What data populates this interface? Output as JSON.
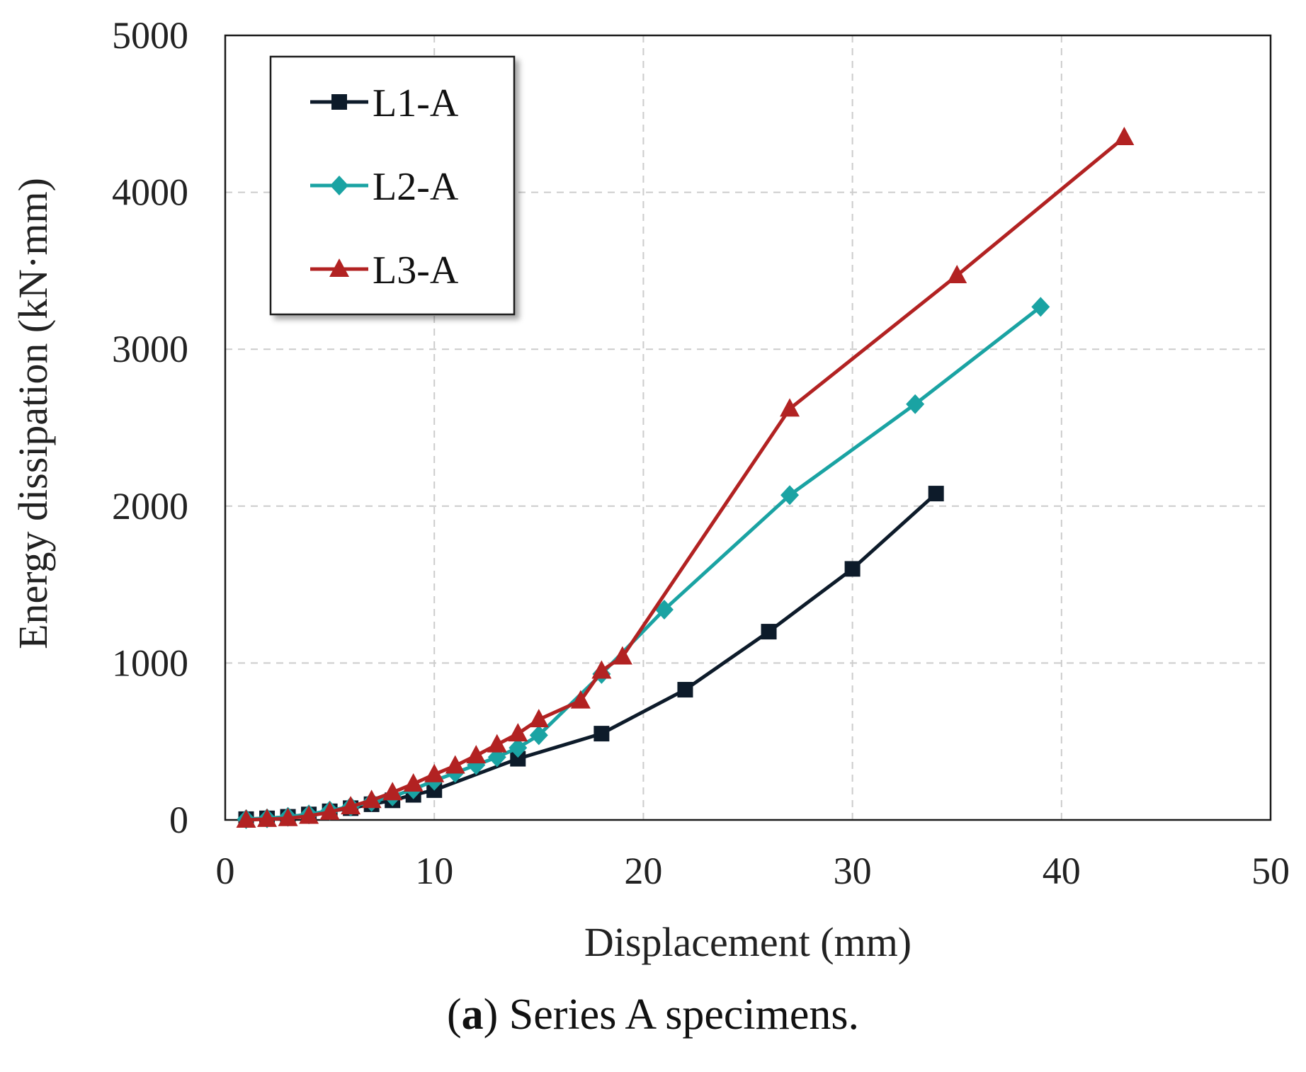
{
  "chart_data": {
    "type": "line",
    "xlabel": "Displacement (mm)",
    "ylabel": "Energy dissipation (kN·mm)",
    "xlim": [
      0,
      50
    ],
    "ylim": [
      0,
      5000
    ],
    "xticks": [
      0,
      10,
      20,
      30,
      40,
      50
    ],
    "yticks": [
      0,
      1000,
      2000,
      3000,
      4000,
      5000
    ],
    "grid": true,
    "legend_position": "top-left",
    "series": [
      {
        "name": "L1-A",
        "color": "#0d1b2a",
        "marker": "square",
        "x": [
          1,
          2,
          3,
          4,
          5,
          6,
          7,
          8,
          9,
          10,
          14,
          18,
          22,
          26,
          30,
          34
        ],
        "y": [
          5,
          10,
          20,
          35,
          55,
          75,
          100,
          125,
          160,
          190,
          390,
          550,
          830,
          1200,
          1600,
          2080
        ]
      },
      {
        "name": "L2-A",
        "color": "#1aa3a3",
        "marker": "diamond",
        "x": [
          1,
          2,
          3,
          4,
          5,
          6,
          7,
          8,
          9,
          10,
          11,
          12,
          13,
          14,
          15,
          18,
          21,
          27,
          33,
          39
        ],
        "y": [
          5,
          10,
          20,
          35,
          60,
          85,
          115,
          150,
          195,
          250,
          300,
          350,
          400,
          460,
          540,
          930,
          1340,
          2070,
          2650,
          3270
        ]
      },
      {
        "name": "L3-A",
        "color": "#b22222",
        "marker": "triangle",
        "x": [
          1,
          2,
          3,
          4,
          5,
          6,
          7,
          8,
          9,
          10,
          11,
          12,
          13,
          14,
          15,
          17,
          18,
          19,
          27,
          35,
          43
        ],
        "y": [
          0,
          5,
          10,
          25,
          50,
          85,
          125,
          175,
          230,
          290,
          345,
          410,
          480,
          550,
          640,
          760,
          950,
          1040,
          2620,
          3470,
          4350
        ]
      }
    ],
    "caption_label": "a",
    "caption_text": "Series A specimens."
  }
}
